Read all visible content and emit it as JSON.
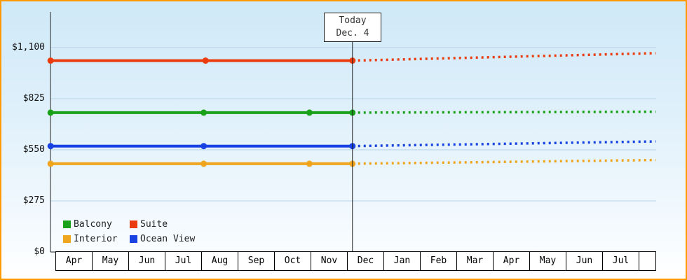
{
  "colors": {
    "frame_border": "#ff9900",
    "grid": "#b6d3e6",
    "axis": "#222222",
    "plot_bg_top": "#cfe9f8",
    "plot_bg_bottom": "#ffffff"
  },
  "chart_data": {
    "type": "line",
    "title": "",
    "today_marker": {
      "line1": "Today",
      "line2": "Dec. 4",
      "t": 8.13
    },
    "x_axis": {
      "months": [
        "Apr",
        "May",
        "Jun",
        "Jul",
        "Aug",
        "Sep",
        "Oct",
        "Nov",
        "Dec",
        "Jan",
        "Feb",
        "Mar",
        "Apr",
        "May",
        "Jun",
        "Jul"
      ]
    },
    "y_axis": {
      "max": 1100,
      "ticks": [
        {
          "label": "$0",
          "value": 0
        },
        {
          "label": "$275",
          "value": 275
        },
        {
          "label": "$550",
          "value": 550
        },
        {
          "label": "$825",
          "value": 825
        },
        {
          "label": "$1,100",
          "value": 1100
        }
      ]
    },
    "series": [
      {
        "name": "Suite",
        "color": "#ea3c0e",
        "history": [
          {
            "t": -0.15,
            "v": 1030
          },
          {
            "t": 4.1,
            "v": 1030
          },
          {
            "t": 8.13,
            "v": 1030
          }
        ],
        "forecast": {
          "t_end": 16.45,
          "v_end": 1070
        }
      },
      {
        "name": "Balcony",
        "color": "#1aa11a",
        "history": [
          {
            "t": -0.15,
            "v": 750
          },
          {
            "t": 4.05,
            "v": 750
          },
          {
            "t": 6.95,
            "v": 750
          },
          {
            "t": 8.13,
            "v": 750
          }
        ],
        "forecast": {
          "t_end": 16.45,
          "v_end": 755
        }
      },
      {
        "name": "Ocean View",
        "color": "#1843e2",
        "history": [
          {
            "t": -0.15,
            "v": 570
          },
          {
            "t": 4.05,
            "v": 570
          },
          {
            "t": 8.13,
            "v": 570
          }
        ],
        "forecast": {
          "t_end": 16.45,
          "v_end": 595
        }
      },
      {
        "name": "Interior",
        "color": "#f0a51f",
        "history": [
          {
            "t": -0.15,
            "v": 475
          },
          {
            "t": 4.05,
            "v": 475
          },
          {
            "t": 6.95,
            "v": 475
          },
          {
            "t": 8.13,
            "v": 475
          }
        ],
        "forecast": {
          "t_end": 16.45,
          "v_end": 495
        }
      }
    ],
    "legend_rows": [
      [
        "Balcony",
        "Suite"
      ],
      [
        "Interior",
        "Ocean View"
      ]
    ],
    "layout": {
      "legend_position": "bottom-left",
      "grid": true,
      "history_style": "solid",
      "forecast_style": "dotted"
    }
  }
}
